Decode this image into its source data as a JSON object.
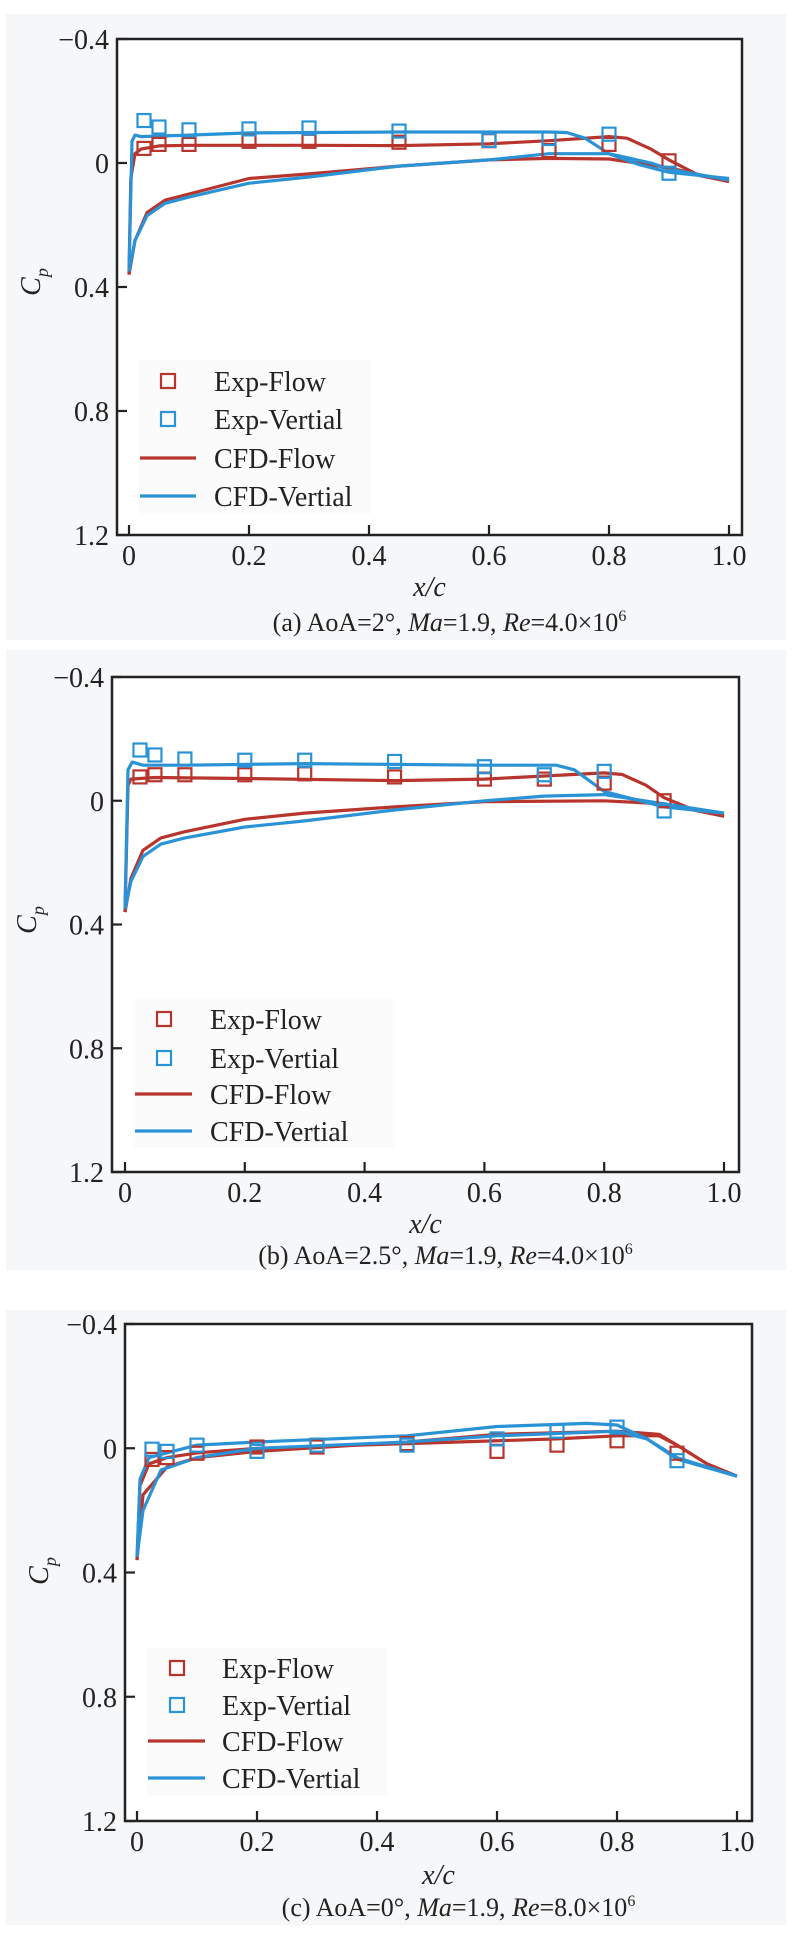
{
  "colors": {
    "flow": "#b8352d",
    "vertial": "#2a93d6",
    "axis": "#222222"
  },
  "chart_data": [
    {
      "type": "line",
      "caption": {
        "prefix": "(a) AoA=2°, ",
        "ma": "Ma",
        "ma_val": "=1.9, ",
        "re": "Re",
        "re_val": "=4.0×10",
        "exp": "6"
      },
      "xlabel": "x/c",
      "ylabel": "C",
      "ylabel_sub": "p",
      "xlim": [
        0,
        1
      ],
      "ylim": [
        -0.4,
        1.2
      ],
      "y_inverted": true,
      "grid": false,
      "legend_placement": "bottom-left",
      "xticks": [
        "0",
        "0.2",
        "0.4",
        "0.6",
        "0.8",
        "1.0"
      ],
      "yticks": [
        "−0.4",
        "0",
        "0.4",
        "0.8",
        "1.2"
      ],
      "legend": [
        "Exp-Flow",
        "Exp-Vertial",
        "CFD-Flow",
        "CFD-Vertial"
      ],
      "series": [
        {
          "name": "Exp-Flow",
          "kind": "scatter",
          "color": "#b8352d",
          "x": [
            0.025,
            0.05,
            0.1,
            0.2,
            0.3,
            0.45,
            0.6,
            0.7,
            0.8,
            0.9
          ],
          "y": [
            -0.047,
            -0.06,
            -0.06,
            -0.07,
            -0.07,
            -0.067,
            -0.072,
            -0.04,
            -0.06,
            -0.007
          ]
        },
        {
          "name": "Exp-Vertial",
          "kind": "scatter",
          "color": "#2a93d6",
          "x": [
            0.025,
            0.05,
            0.1,
            0.2,
            0.3,
            0.45,
            0.6,
            0.7,
            0.8,
            0.9
          ],
          "y": [
            -0.137,
            -0.116,
            -0.107,
            -0.11,
            -0.113,
            -0.103,
            -0.073,
            -0.079,
            -0.093,
            0.033
          ]
        },
        {
          "name": "CFD-Flow",
          "kind": "line",
          "color": "#b8352d",
          "segments": [
            {
              "x": [
                0,
                0.003,
                0.01,
                0.02,
                0.05,
                0.1,
                0.3,
                0.45,
                0.6,
                0.7,
                0.8,
                0.83,
                0.87,
                0.9,
                0.95,
                1.0
              ],
              "y": [
                0.36,
                0.05,
                -0.03,
                -0.045,
                -0.055,
                -0.057,
                -0.057,
                -0.056,
                -0.062,
                -0.072,
                -0.085,
                -0.08,
                -0.045,
                -0.01,
                0.04,
                0.06
              ]
            },
            {
              "x": [
                0,
                0.01,
                0.03,
                0.06,
                0.1,
                0.2,
                0.3,
                0.45,
                0.6,
                0.7,
                0.8,
                0.9,
                1.0
              ],
              "y": [
                0.36,
                0.25,
                0.16,
                0.12,
                0.1,
                0.05,
                0.035,
                0.01,
                -0.01,
                -0.015,
                -0.013,
                0.015,
                0.06
              ]
            }
          ]
        },
        {
          "name": "CFD-Vertial",
          "kind": "line",
          "color": "#2a93d6",
          "segments": [
            {
              "x": [
                0,
                0.005,
                0.01,
                0.02,
                0.1,
                0.2,
                0.45,
                0.7,
                0.73,
                0.76,
                0.8,
                0.85,
                0.9,
                1.0
              ],
              "y": [
                0.35,
                -0.07,
                -0.09,
                -0.085,
                -0.09,
                -0.097,
                -0.1,
                -0.1,
                -0.098,
                -0.08,
                -0.03,
                0.005,
                0.03,
                0.05
              ]
            },
            {
              "x": [
                0,
                0.01,
                0.03,
                0.06,
                0.1,
                0.2,
                0.3,
                0.45,
                0.6,
                0.7,
                0.8,
                0.87,
                0.9,
                1.0
              ],
              "y": [
                0.35,
                0.25,
                0.17,
                0.13,
                0.11,
                0.065,
                0.045,
                0.01,
                -0.01,
                -0.03,
                -0.03,
                0.0,
                0.02,
                0.055
              ]
            }
          ]
        }
      ]
    },
    {
      "type": "line",
      "caption": {
        "prefix": "(b) AoA=2.5°, ",
        "ma": "Ma",
        "ma_val": "=1.9, ",
        "re": "Re",
        "re_val": "=4.0×10",
        "exp": "6"
      },
      "xlabel": "x/c",
      "ylabel": "C",
      "ylabel_sub": "p",
      "xlim": [
        0,
        1
      ],
      "ylim": [
        -0.4,
        1.2
      ],
      "y_inverted": true,
      "grid": false,
      "legend_placement": "bottom-left",
      "xticks": [
        "0",
        "0.2",
        "0.4",
        "0.6",
        "0.8",
        "1.0"
      ],
      "yticks": [
        "−0.4",
        "0",
        "0.4",
        "0.8",
        "1.2"
      ],
      "legend": [
        "Exp-Flow",
        "Exp-Vertial",
        "CFD-Flow",
        "CFD-Vertial"
      ],
      "series": [
        {
          "name": "Exp-Flow",
          "kind": "scatter",
          "color": "#b8352d",
          "x": [
            0.025,
            0.05,
            0.1,
            0.2,
            0.3,
            0.45,
            0.6,
            0.7,
            0.8,
            0.9
          ],
          "y": [
            -0.077,
            -0.084,
            -0.084,
            -0.084,
            -0.087,
            -0.077,
            -0.07,
            -0.07,
            -0.057,
            0.0
          ]
        },
        {
          "name": "Exp-Vertial",
          "kind": "scatter",
          "color": "#2a93d6",
          "x": [
            0.025,
            0.05,
            0.1,
            0.2,
            0.3,
            0.45,
            0.6,
            0.7,
            0.8,
            0.9
          ],
          "y": [
            -0.164,
            -0.148,
            -0.135,
            -0.131,
            -0.131,
            -0.127,
            -0.11,
            -0.084,
            -0.095,
            0.033
          ]
        },
        {
          "name": "CFD-Flow",
          "kind": "line",
          "color": "#b8352d",
          "segments": [
            {
              "x": [
                0,
                0.005,
                0.01,
                0.05,
                0.2,
                0.45,
                0.6,
                0.7,
                0.8,
                0.83,
                0.87,
                0.9,
                0.95,
                1.0
              ],
              "y": [
                0.36,
                -0.05,
                -0.07,
                -0.075,
                -0.072,
                -0.065,
                -0.07,
                -0.08,
                -0.09,
                -0.085,
                -0.05,
                -0.01,
                0.03,
                0.05
              ]
            },
            {
              "x": [
                0,
                0.01,
                0.03,
                0.06,
                0.1,
                0.2,
                0.3,
                0.45,
                0.6,
                0.8,
                0.9,
                1.0
              ],
              "y": [
                0.36,
                0.25,
                0.16,
                0.12,
                0.1,
                0.06,
                0.04,
                0.02,
                0.003,
                0.0,
                0.01,
                0.05
              ]
            }
          ]
        },
        {
          "name": "CFD-Vertial",
          "kind": "line",
          "color": "#2a93d6",
          "segments": [
            {
              "x": [
                0,
                0.005,
                0.012,
                0.03,
                0.1,
                0.3,
                0.6,
                0.72,
                0.75,
                0.8,
                0.85,
                0.9,
                1.0
              ],
              "y": [
                0.35,
                -0.1,
                -0.125,
                -0.115,
                -0.115,
                -0.12,
                -0.115,
                -0.115,
                -0.1,
                -0.03,
                -0.005,
                0.02,
                0.04
              ]
            },
            {
              "x": [
                0,
                0.01,
                0.03,
                0.06,
                0.1,
                0.2,
                0.3,
                0.45,
                0.6,
                0.7,
                0.8,
                0.9,
                1.0
              ],
              "y": [
                0.35,
                0.26,
                0.18,
                0.14,
                0.12,
                0.085,
                0.065,
                0.03,
                0.0,
                -0.015,
                -0.02,
                0.01,
                0.04
              ]
            }
          ]
        }
      ]
    },
    {
      "type": "line",
      "caption": {
        "prefix": "(c) AoA=0°, ",
        "ma": "Ma",
        "ma_val": "=1.9, ",
        "re": "Re",
        "re_val": "=8.0×10",
        "exp": "6"
      },
      "xlabel": "x/c",
      "ylabel": "C",
      "ylabel_sub": "p",
      "xlim": [
        0,
        1
      ],
      "ylim": [
        -0.4,
        1.2
      ],
      "y_inverted": true,
      "grid": false,
      "legend_placement": "bottom-left",
      "xticks": [
        "0",
        "0.2",
        "0.4",
        "0.6",
        "0.8",
        "1.0"
      ],
      "yticks": [
        "−0.4",
        "0",
        "0.4",
        "0.8",
        "1.2"
      ],
      "legend": [
        "Exp-Flow",
        "Exp-Vertial",
        "CFD-Flow",
        "CFD-Vertial"
      ],
      "series": [
        {
          "name": "Exp-Flow",
          "kind": "scatter",
          "color": "#b8352d",
          "x": [
            0.025,
            0.05,
            0.1,
            0.2,
            0.3,
            0.45,
            0.6,
            0.7,
            0.8,
            0.9
          ],
          "y": [
            0.036,
            0.03,
            0.016,
            -0.004,
            -0.004,
            -0.015,
            0.01,
            -0.01,
            -0.024,
            0.016
          ]
        },
        {
          "name": "Exp-Vertial",
          "kind": "scatter",
          "color": "#2a93d6",
          "x": [
            0.025,
            0.05,
            0.1,
            0.2,
            0.3,
            0.45,
            0.6,
            0.7,
            0.8,
            0.9
          ],
          "y": [
            0.003,
            0.01,
            -0.01,
            0.01,
            -0.01,
            -0.01,
            -0.03,
            -0.055,
            -0.068,
            0.04
          ]
        },
        {
          "name": "CFD-Flow",
          "kind": "line",
          "color": "#b8352d",
          "segments": [
            {
              "x": [
                0,
                0.005,
                0.02,
                0.05,
                0.1,
                0.2,
                0.45,
                0.7,
                0.8,
                0.87,
                0.9,
                0.95,
                1.0
              ],
              "y": [
                0.36,
                0.12,
                0.05,
                0.03,
                0.015,
                0.0,
                -0.015,
                -0.03,
                -0.04,
                -0.04,
                -0.01,
                0.05,
                0.09
              ]
            },
            {
              "x": [
                0,
                0.01,
                0.05,
                0.1,
                0.2,
                0.45,
                0.6,
                0.8,
                0.87,
                0.9,
                0.95,
                1.0
              ],
              "y": [
                0.36,
                0.15,
                0.06,
                0.03,
                0.01,
                -0.02,
                -0.045,
                -0.055,
                -0.045,
                -0.01,
                0.05,
                0.09
              ]
            }
          ]
        },
        {
          "name": "CFD-Vertial",
          "kind": "line",
          "color": "#2a93d6",
          "segments": [
            {
              "x": [
                0,
                0.005,
                0.02,
                0.1,
                0.2,
                0.45,
                0.6,
                0.75,
                0.8,
                0.85,
                0.9,
                1.0
              ],
              "y": [
                0.35,
                0.1,
                0.03,
                -0.01,
                -0.02,
                -0.04,
                -0.07,
                -0.08,
                -0.075,
                -0.03,
                0.03,
                0.09
              ]
            },
            {
              "x": [
                0,
                0.01,
                0.04,
                0.1,
                0.2,
                0.45,
                0.6,
                0.8,
                0.85,
                0.9,
                1.0
              ],
              "y": [
                0.35,
                0.2,
                0.07,
                0.03,
                0.0,
                -0.02,
                -0.04,
                -0.055,
                -0.03,
                0.035,
                0.09
              ]
            }
          ]
        }
      ]
    }
  ]
}
